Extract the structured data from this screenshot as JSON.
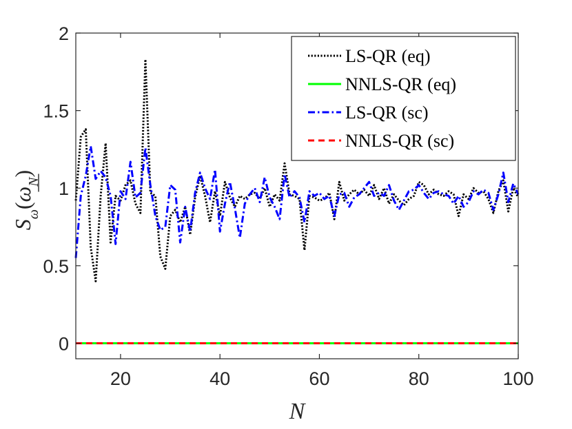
{
  "chart_data": {
    "type": "line",
    "title": "",
    "xlabel": "N",
    "ylabel": "S_ω(ω_N)",
    "ylabel_parts": {
      "main": "S",
      "sub": "ω",
      "arg": "ω",
      "arg_sub": "N"
    },
    "xlim": [
      11,
      100
    ],
    "ylim": [
      -0.1,
      2
    ],
    "xticks": [
      20,
      40,
      60,
      80,
      100
    ],
    "yticks": [
      0,
      0.5,
      1,
      1.5,
      2
    ],
    "ytick_labels": [
      "0",
      "0.5",
      "1",
      "1.5",
      "2"
    ],
    "legend_position": "top-right",
    "x": [
      11,
      12,
      13,
      14,
      15,
      16,
      17,
      18,
      19,
      20,
      21,
      22,
      23,
      24,
      25,
      26,
      27,
      28,
      29,
      30,
      31,
      32,
      33,
      34,
      35,
      36,
      37,
      38,
      39,
      40,
      41,
      42,
      43,
      44,
      45,
      46,
      47,
      48,
      49,
      50,
      51,
      52,
      53,
      54,
      55,
      56,
      57,
      58,
      59,
      60,
      61,
      62,
      63,
      64,
      65,
      66,
      67,
      68,
      69,
      70,
      71,
      72,
      73,
      74,
      75,
      76,
      77,
      78,
      79,
      80,
      81,
      82,
      83,
      84,
      85,
      86,
      87,
      88,
      89,
      90,
      91,
      92,
      93,
      94,
      95,
      96,
      97,
      98,
      99,
      100
    ],
    "series": [
      {
        "name": "LS-QR (eq)",
        "color": "#000000",
        "style": "dotted",
        "values": [
          0.92,
          1.33,
          1.38,
          0.62,
          0.4,
          0.95,
          1.29,
          0.65,
          0.95,
          0.92,
          1.02,
          1.05,
          0.9,
          0.84,
          1.83,
          0.97,
          0.95,
          0.56,
          0.48,
          0.82,
          0.86,
          0.78,
          0.88,
          0.7,
          0.94,
          1.08,
          0.95,
          0.78,
          0.98,
          0.82,
          1.04,
          0.94,
          0.88,
          0.95,
          0.93,
          0.96,
          0.97,
          0.93,
          1.0,
          0.88,
          0.96,
          0.92,
          1.16,
          0.96,
          0.95,
          0.93,
          0.6,
          0.95,
          0.94,
          0.92,
          0.93,
          0.97,
          0.8,
          1.04,
          0.92,
          0.96,
          0.99,
          0.96,
          0.99,
          0.95,
          1.02,
          0.93,
          1.0,
          0.9,
          0.96,
          0.92,
          0.89,
          0.93,
          0.95,
          1.04,
          1.02,
          0.96,
          0.99,
          0.96,
          0.95,
          0.98,
          0.96,
          0.82,
          0.96,
          0.93,
          1.0,
          0.97,
          0.98,
          0.93,
          0.84,
          0.98,
          1.05,
          0.85,
          1.0,
          0.94
        ]
      },
      {
        "name": "NNLS-QR (eq)",
        "color": "#00ff00",
        "style": "solid",
        "values": [
          0,
          0,
          0,
          0,
          0,
          0,
          0,
          0,
          0,
          0,
          0,
          0,
          0,
          0,
          0,
          0,
          0,
          0,
          0,
          0,
          0,
          0,
          0,
          0,
          0,
          0,
          0,
          0,
          0,
          0,
          0,
          0,
          0,
          0,
          0,
          0,
          0,
          0,
          0,
          0,
          0,
          0,
          0,
          0,
          0,
          0,
          0,
          0,
          0,
          0,
          0,
          0,
          0,
          0,
          0,
          0,
          0,
          0,
          0,
          0,
          0,
          0,
          0,
          0,
          0,
          0,
          0,
          0,
          0,
          0,
          0,
          0,
          0,
          0,
          0,
          0,
          0,
          0,
          0,
          0,
          0,
          0,
          0,
          0,
          0,
          0,
          0,
          0,
          0,
          0
        ]
      },
      {
        "name": "LS-QR (sc)",
        "color": "#0000ff",
        "style": "dashdot",
        "values": [
          0.55,
          0.95,
          1.08,
          1.27,
          1.06,
          1.11,
          1.07,
          0.95,
          0.64,
          0.98,
          0.93,
          1.17,
          0.94,
          0.97,
          1.26,
          1.02,
          0.82,
          0.73,
          0.75,
          1.02,
          0.99,
          0.65,
          0.88,
          0.72,
          0.97,
          1.1,
          1.0,
          0.93,
          1.12,
          0.72,
          0.9,
          1.04,
          0.87,
          0.68,
          0.9,
          0.96,
          1.0,
          0.91,
          1.07,
          0.94,
          0.88,
          0.8,
          1.09,
          0.94,
          0.98,
          0.94,
          0.78,
          0.98,
          0.95,
          0.97,
          0.93,
          0.95,
          0.82,
          0.96,
          0.97,
          0.88,
          0.94,
          0.96,
          1.0,
          1.04,
          0.95,
          0.97,
          0.95,
          1.02,
          0.92,
          0.86,
          0.92,
          0.98,
          0.99,
          1.02,
          0.97,
          0.93,
          0.97,
          0.98,
          0.96,
          0.95,
          0.9,
          0.95,
          0.88,
          0.91,
          0.98,
          0.96,
          0.99,
          0.97,
          0.86,
          0.96,
          1.1,
          0.91,
          1.03,
          0.96
        ]
      },
      {
        "name": "NNLS-QR (sc)",
        "color": "#ff0000",
        "style": "dashed",
        "values": [
          0,
          0,
          0,
          0,
          0,
          0,
          0,
          0,
          0,
          0,
          0,
          0,
          0,
          0,
          0,
          0,
          0,
          0,
          0,
          0,
          0,
          0,
          0,
          0,
          0,
          0,
          0,
          0,
          0,
          0,
          0,
          0,
          0,
          0,
          0,
          0,
          0,
          0,
          0,
          0,
          0,
          0,
          0,
          0,
          0,
          0,
          0,
          0,
          0,
          0,
          0,
          0,
          0,
          0,
          0,
          0,
          0,
          0,
          0,
          0,
          0,
          0,
          0,
          0,
          0,
          0,
          0,
          0,
          0,
          0,
          0,
          0,
          0,
          0,
          0,
          0,
          0,
          0,
          0,
          0,
          0,
          0,
          0,
          0,
          0,
          0,
          0,
          0,
          0,
          0
        ]
      }
    ]
  }
}
